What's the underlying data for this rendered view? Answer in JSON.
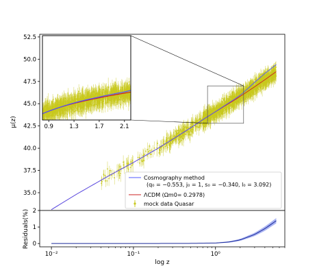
{
  "chart_data": [
    {
      "type": "scatter",
      "panel": "main",
      "ylabel": "μ(z)",
      "ylim": [
        33.0,
        52.8
      ],
      "xscale": "log",
      "xlim": [
        0.0072,
        7.0
      ],
      "yticks": [
        35.0,
        37.5,
        40.0,
        42.5,
        45.0,
        47.5,
        50.0,
        52.5
      ],
      "ytick_labels": [
        "35.0",
        "37.5",
        "40.0",
        "42.5",
        "45.0",
        "47.5",
        "50.0",
        "52.5"
      ],
      "series": [
        {
          "name": "Cosmography method",
          "name_params": "(q₀ = −0.553, j₀ = 1, s₀ = −0.340, l₀ = 3.092)",
          "kind": "line",
          "color": "#4f58ff",
          "x": [
            0.01,
            0.02,
            0.05,
            0.1,
            0.2,
            0.3,
            0.5,
            0.7,
            1.0,
            1.3,
            1.7,
            2.1,
            3.0,
            4.0,
            5.5
          ],
          "y": [
            33.1,
            34.8,
            36.9,
            38.4,
            40.0,
            41.0,
            42.3,
            43.2,
            44.1,
            44.8,
            45.5,
            46.1,
            47.4,
            48.4,
            49.4
          ]
        },
        {
          "name": "ΛCDM (Ωm0= 0.2978)",
          "kind": "line",
          "color": "#cc2222",
          "x": [
            0.01,
            0.02,
            0.05,
            0.1,
            0.2,
            0.3,
            0.5,
            0.7,
            1.0,
            1.3,
            1.7,
            2.1,
            3.0,
            4.0,
            5.5
          ],
          "y": [
            33.1,
            34.8,
            36.9,
            38.4,
            40.0,
            41.0,
            42.3,
            43.2,
            44.1,
            44.75,
            45.4,
            45.95,
            46.9,
            47.7,
            48.6
          ]
        },
        {
          "name": "mock data Quasar",
          "kind": "errorbar-scatter",
          "color": "#c8c81e",
          "x_range": [
            0.04,
            5.5
          ],
          "follows": "ΛCDM",
          "scatter": 0.55
        }
      ],
      "legend_position": "lower-right",
      "inset": {
        "xlim": [
          0.8,
          2.2
        ],
        "ylim": [
          42.8,
          52.7
        ],
        "xticks": [
          0.9,
          1.3,
          1.7,
          2.1
        ],
        "xtick_labels": [
          "0.9",
          "1.3",
          "1.7",
          "2.1"
        ],
        "zoom_box": {
          "x": [
            0.8,
            2.2
          ],
          "y": [
            42.8,
            47.0
          ]
        }
      }
    },
    {
      "type": "area",
      "panel": "residuals",
      "xlabel": "log z",
      "ylabel": "Residuals(%)",
      "ylim": [
        -0.2,
        2.0
      ],
      "yticks": [
        0,
        1,
        2
      ],
      "ytick_labels": [
        "0",
        "1",
        "2"
      ],
      "xscale": "log",
      "xticks": [
        0.01,
        0.1,
        1
      ],
      "xtick_labels": [
        "10⁻²",
        "10⁻¹",
        "10⁰"
      ],
      "series": [
        {
          "kind": "line-with-band",
          "color": "#1a2a9a",
          "band_color": "#9aa6f0",
          "x": [
            0.01,
            0.1,
            0.5,
            1.0,
            1.5,
            2.0,
            3.0,
            4.0,
            5.5
          ],
          "y": [
            0.0,
            0.0,
            0.01,
            0.03,
            0.1,
            0.22,
            0.55,
            0.9,
            1.38
          ],
          "band_half_width": [
            0.0,
            0.0,
            0.01,
            0.02,
            0.04,
            0.06,
            0.1,
            0.13,
            0.16
          ]
        }
      ]
    }
  ]
}
